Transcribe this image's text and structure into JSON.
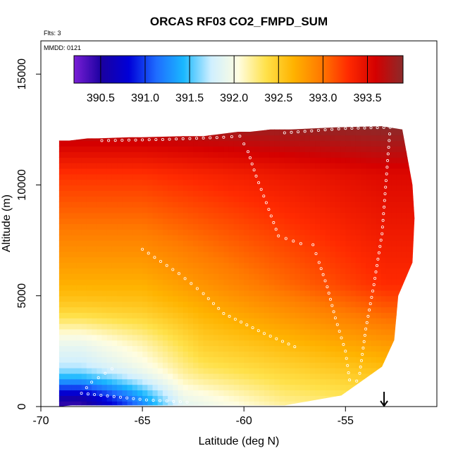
{
  "chart_data": {
    "type": "heatmap",
    "title": "ORCAS RF03 CO2_FMPD_SUM",
    "flights_label": "Flts: 3",
    "date_label": "MMDD: 0121",
    "xlabel": "Latitude (deg N)",
    "ylabel": "Altitude (m)",
    "xlim": [
      -70,
      -50.5
    ],
    "ylim": [
      0,
      16500
    ],
    "xticks": [
      -70,
      -65,
      -60,
      -55
    ],
    "yticks": [
      0,
      5000,
      10000,
      15000
    ],
    "colorbar": {
      "range": [
        390.2,
        393.9
      ],
      "ticks": [
        390.5,
        391.0,
        391.5,
        392.0,
        392.5,
        393.0,
        393.5
      ],
      "colors": [
        "#7a1fd6",
        "#1a00a0",
        "#0000d8",
        "#1e6cff",
        "#1ab8ff",
        "#cfefff",
        "#fffde0",
        "#ffe14a",
        "#ffb300",
        "#ff7a00",
        "#ff2a00",
        "#d40000",
        "#8b2a2a"
      ]
    },
    "data_envelope": {
      "latitude": [
        -69.1,
        -68.6,
        -67.7,
        -67.2,
        -65.6,
        -65.0,
        -63.0,
        -62.0,
        -60.3,
        -59.7,
        -58.7,
        -57.7,
        -55.5,
        -53.2,
        -52.2,
        -51.7,
        -51.6,
        -51.7,
        -52.4,
        -52.6,
        -53.2,
        -55.2,
        -58.0,
        -62.5,
        -65.8,
        -68.5,
        -69.1
      ],
      "altitude_m": [
        12000,
        12000,
        12100,
        12100,
        12150,
        12150,
        12200,
        12200,
        12400,
        12400,
        12500,
        12500,
        12600,
        12650,
        12500,
        10000,
        8500,
        6500,
        5000,
        3000,
        1800,
        500,
        50,
        50,
        50,
        50,
        0
      ]
    },
    "flight_track": [
      {
        "lat": -67.0,
        "alt": 12000
      },
      {
        "lat": -64.0,
        "alt": 12050
      },
      {
        "lat": -61.0,
        "alt": 12150
      },
      {
        "lat": -60.2,
        "alt": 12200
      },
      {
        "lat": -59.8,
        "alt": 11500
      },
      {
        "lat": -59.4,
        "alt": 10400
      },
      {
        "lat": -58.9,
        "alt": 9200
      },
      {
        "lat": -58.3,
        "alt": 7700
      },
      {
        "lat": -57.2,
        "alt": 7350
      },
      {
        "lat": -56.6,
        "alt": 7300
      },
      {
        "lat": -56.3,
        "alt": 6500
      },
      {
        "lat": -55.9,
        "alt": 5400
      },
      {
        "lat": -55.5,
        "alt": 4000
      },
      {
        "lat": -55.0,
        "alt": 2500
      },
      {
        "lat": -54.8,
        "alt": 1200
      },
      {
        "lat": -54.6,
        "alt": 800
      },
      {
        "lat": -54.3,
        "alt": 1500
      },
      {
        "lat": -54.0,
        "alt": 3500
      },
      {
        "lat": -53.6,
        "alt": 5500
      },
      {
        "lat": -53.2,
        "alt": 7800
      },
      {
        "lat": -53.0,
        "alt": 10200
      },
      {
        "lat": -52.8,
        "alt": 12600
      },
      {
        "lat": -55.0,
        "alt": 12550
      },
      {
        "lat": -58.0,
        "alt": 12350
      },
      {
        "lat": -65.0,
        "alt": 7100
      },
      {
        "lat": -63.2,
        "alt": 6000
      },
      {
        "lat": -62.0,
        "alt": 5100
      },
      {
        "lat": -61.0,
        "alt": 4200
      },
      {
        "lat": -59.0,
        "alt": 3300
      },
      {
        "lat": -57.5,
        "alt": 2700
      },
      {
        "lat": -66.5,
        "alt": 1700
      },
      {
        "lat": -67.5,
        "alt": 1100
      },
      {
        "lat": -68.0,
        "alt": 600
      },
      {
        "lat": -64.8,
        "alt": 300
      },
      {
        "lat": -62.8,
        "alt": 200
      }
    ],
    "markers": [
      {
        "type": "arrow-down",
        "lat": -53.1,
        "alt": 0
      }
    ]
  }
}
